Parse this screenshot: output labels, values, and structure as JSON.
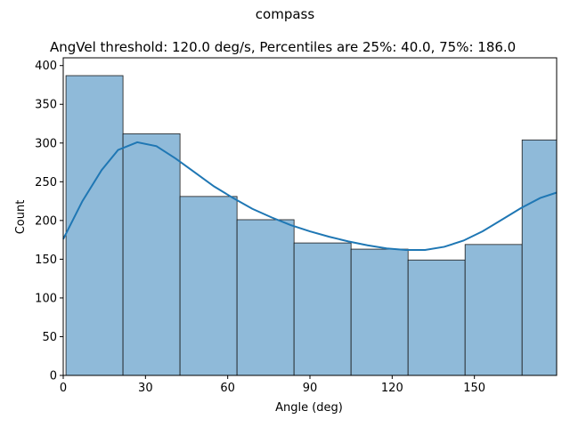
{
  "chart_data": {
    "type": "histogram",
    "title": "compass",
    "subtitle": "AngVel threshold: 120.0 deg/s, Percentiles are 25%: 40.0, 75%: 186.0",
    "xlabel": "Angle (deg)",
    "ylabel": "Count",
    "xlim": [
      0,
      180
    ],
    "ylim": [
      0,
      410
    ],
    "x_ticks": [
      0,
      30,
      60,
      90,
      120,
      150
    ],
    "y_ticks": [
      0,
      50,
      100,
      150,
      200,
      250,
      300,
      350,
      400
    ],
    "grid": false,
    "bins": [
      {
        "x0": 1,
        "x1": 21.8,
        "count": 387
      },
      {
        "x0": 21.8,
        "x1": 42.6,
        "count": 312
      },
      {
        "x0": 42.6,
        "x1": 63.4,
        "count": 231
      },
      {
        "x0": 63.4,
        "x1": 84.2,
        "count": 201
      },
      {
        "x0": 84.2,
        "x1": 105,
        "count": 171
      },
      {
        "x0": 105,
        "x1": 125.8,
        "count": 163
      },
      {
        "x0": 125.8,
        "x1": 146.6,
        "count": 149
      },
      {
        "x0": 146.6,
        "x1": 167.4,
        "count": 169
      },
      {
        "x0": 167.4,
        "x1": 180,
        "count": 304
      }
    ],
    "kde": {
      "x": [
        0,
        7,
        14,
        20,
        27,
        34,
        41,
        48,
        55,
        62,
        69,
        76,
        83,
        90,
        97,
        104,
        111,
        118,
        125,
        132,
        139,
        146,
        153,
        160,
        167,
        174,
        180
      ],
      "y": [
        176,
        225,
        265,
        291,
        301,
        296,
        280,
        262,
        244,
        229,
        215,
        204,
        194,
        186,
        179,
        173,
        168,
        164,
        162,
        162,
        166,
        174,
        186,
        201,
        216,
        229,
        236
      ]
    },
    "colors": {
      "bar_fill": "#8fbad9",
      "bar_edge": "#1a1a1a",
      "kde_line": "#1f77b4"
    }
  }
}
